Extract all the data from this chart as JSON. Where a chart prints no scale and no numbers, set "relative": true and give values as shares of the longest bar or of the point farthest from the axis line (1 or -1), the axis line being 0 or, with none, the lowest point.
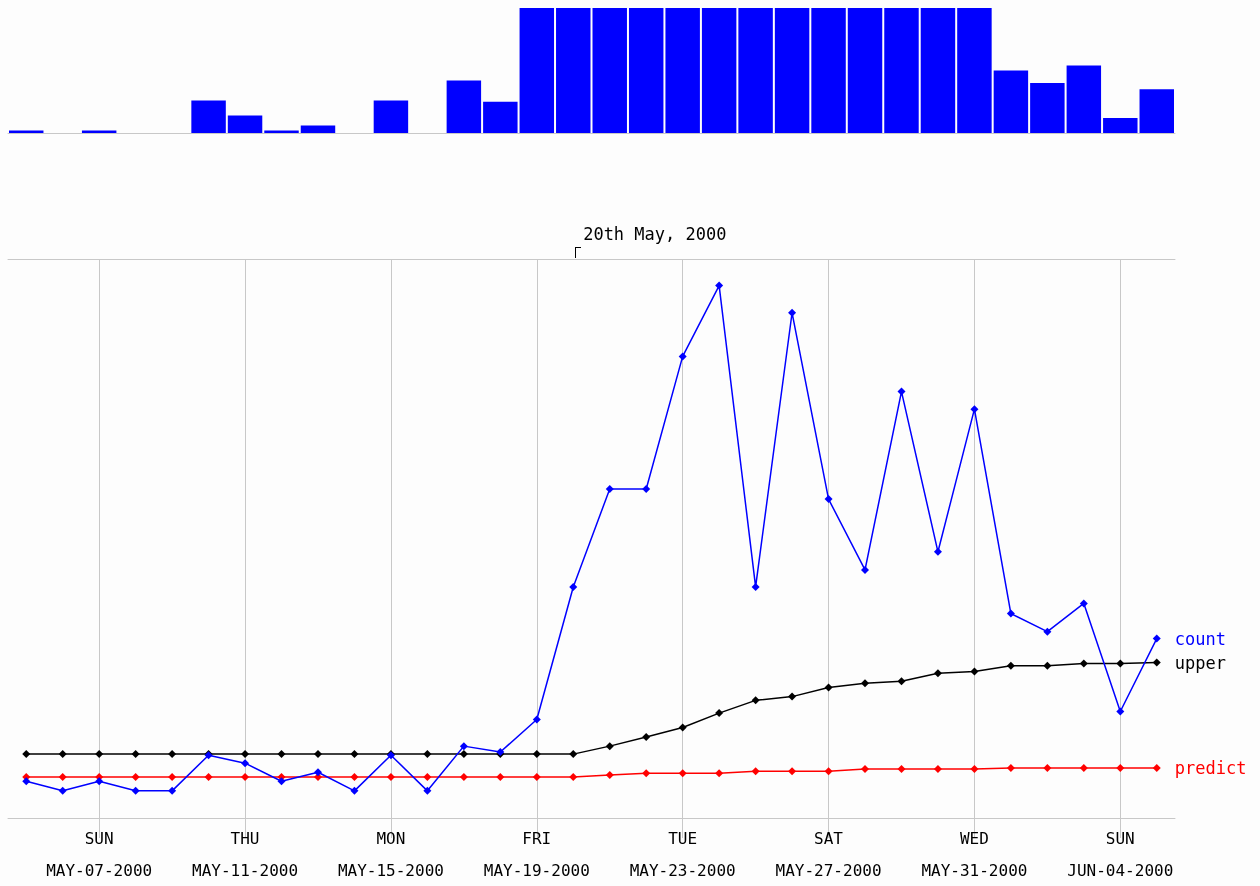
{
  "chart_data": [
    {
      "type": "bar",
      "relative": true,
      "color": "#0000ff",
      "grid": false,
      "legend": false,
      "x": [
        "2000-05-05",
        "2000-05-06",
        "2000-05-07",
        "2000-05-08",
        "2000-05-09",
        "2000-05-10",
        "2000-05-11",
        "2000-05-12",
        "2000-05-13",
        "2000-05-14",
        "2000-05-15",
        "2000-05-16",
        "2000-05-17",
        "2000-05-18",
        "2000-05-19",
        "2000-05-20",
        "2000-05-21",
        "2000-05-22",
        "2000-05-23",
        "2000-05-24",
        "2000-05-25",
        "2000-05-26",
        "2000-05-27",
        "2000-05-28",
        "2000-05-29",
        "2000-05-30",
        "2000-05-31",
        "2000-06-01",
        "2000-06-02",
        "2000-06-03",
        "2000-06-04",
        "2000-06-05"
      ],
      "values": [
        0.02,
        0,
        0.02,
        0,
        0,
        0.26,
        0.14,
        0.02,
        0.06,
        0,
        0.26,
        0,
        0.42,
        0.25,
        1,
        1,
        1,
        1,
        1,
        1,
        1,
        1,
        1,
        1,
        1,
        1,
        1,
        0.5,
        0.4,
        0.54,
        0.12,
        0.35
      ],
      "xlim": [
        "2000-05-04T12:00",
        "2000-06-05T12:00"
      ]
    },
    {
      "type": "line",
      "relative": true,
      "grid": "x",
      "legend": false,
      "marker": "diamond",
      "line_style": "solid",
      "x": [
        "2000-05-05",
        "2000-05-06",
        "2000-05-07",
        "2000-05-08",
        "2000-05-09",
        "2000-05-10",
        "2000-05-11",
        "2000-05-12",
        "2000-05-13",
        "2000-05-14",
        "2000-05-15",
        "2000-05-16",
        "2000-05-17",
        "2000-05-18",
        "2000-05-19",
        "2000-05-20",
        "2000-05-21",
        "2000-05-22",
        "2000-05-23",
        "2000-05-24",
        "2000-05-25",
        "2000-05-26",
        "2000-05-27",
        "2000-05-28",
        "2000-05-29",
        "2000-05-30",
        "2000-05-31",
        "2000-06-01",
        "2000-06-02",
        "2000-06-03",
        "2000-06-04",
        "2000-06-05"
      ],
      "xlim": [
        "2000-05-04T12:00",
        "2000-06-05T12:00"
      ],
      "xticks": [
        {
          "value": "2000-05-07",
          "label": "SUN\nMAY-07-2000"
        },
        {
          "value": "2000-05-11",
          "label": "THU\nMAY-11-2000"
        },
        {
          "value": "2000-05-15",
          "label": "MON\nMAY-15-2000"
        },
        {
          "value": "2000-05-19",
          "label": "FRI\nMAY-19-2000"
        },
        {
          "value": "2000-05-23",
          "label": "TUE\nMAY-23-2000"
        },
        {
          "value": "2000-05-27",
          "label": "SAT\nMAY-27-2000"
        },
        {
          "value": "2000-05-31",
          "label": "WED\nMAY-31-2000"
        },
        {
          "value": "2000-06-04",
          "label": "SUN\nJUN-04-2000"
        }
      ],
      "annotations": [
        "20th May, 2000"
      ],
      "series": [
        {
          "name": "count",
          "color": "#0000ff",
          "values": [
            0.069,
            0.051,
            0.069,
            0.051,
            0.051,
            0.118,
            0.103,
            0.069,
            0.086,
            0.051,
            0.118,
            0.051,
            0.135,
            0.124,
            0.185,
            0.434,
            0.618,
            0.618,
            0.867,
            1,
            0.434,
            0.949,
            0.599,
            0.466,
            0.801,
            0.5,
            0.768,
            0.384,
            0.35,
            0.403,
            0.2,
            0.337
          ]
        },
        {
          "name": "upper",
          "color": "#000000",
          "values": [
            0.12,
            0.12,
            0.12,
            0.12,
            0.12,
            0.12,
            0.12,
            0.12,
            0.12,
            0.12,
            0.12,
            0.12,
            0.12,
            0.12,
            0.12,
            0.12,
            0.135,
            0.152,
            0.17,
            0.197,
            0.221,
            0.228,
            0.245,
            0.253,
            0.257,
            0.272,
            0.275,
            0.286,
            0.286,
            0.29,
            0.29,
            0.292
          ]
        },
        {
          "name": "predict",
          "color": "#ff0000",
          "values": [
            0.077,
            0.077,
            0.077,
            0.077,
            0.077,
            0.077,
            0.077,
            0.077,
            0.077,
            0.077,
            0.077,
            0.077,
            0.077,
            0.077,
            0.077,
            0.077,
            0.081,
            0.084,
            0.084,
            0.084,
            0.088,
            0.088,
            0.088,
            0.092,
            0.092,
            0.092,
            0.092,
            0.094,
            0.094,
            0.094,
            0.094,
            0.094
          ]
        }
      ]
    }
  ]
}
